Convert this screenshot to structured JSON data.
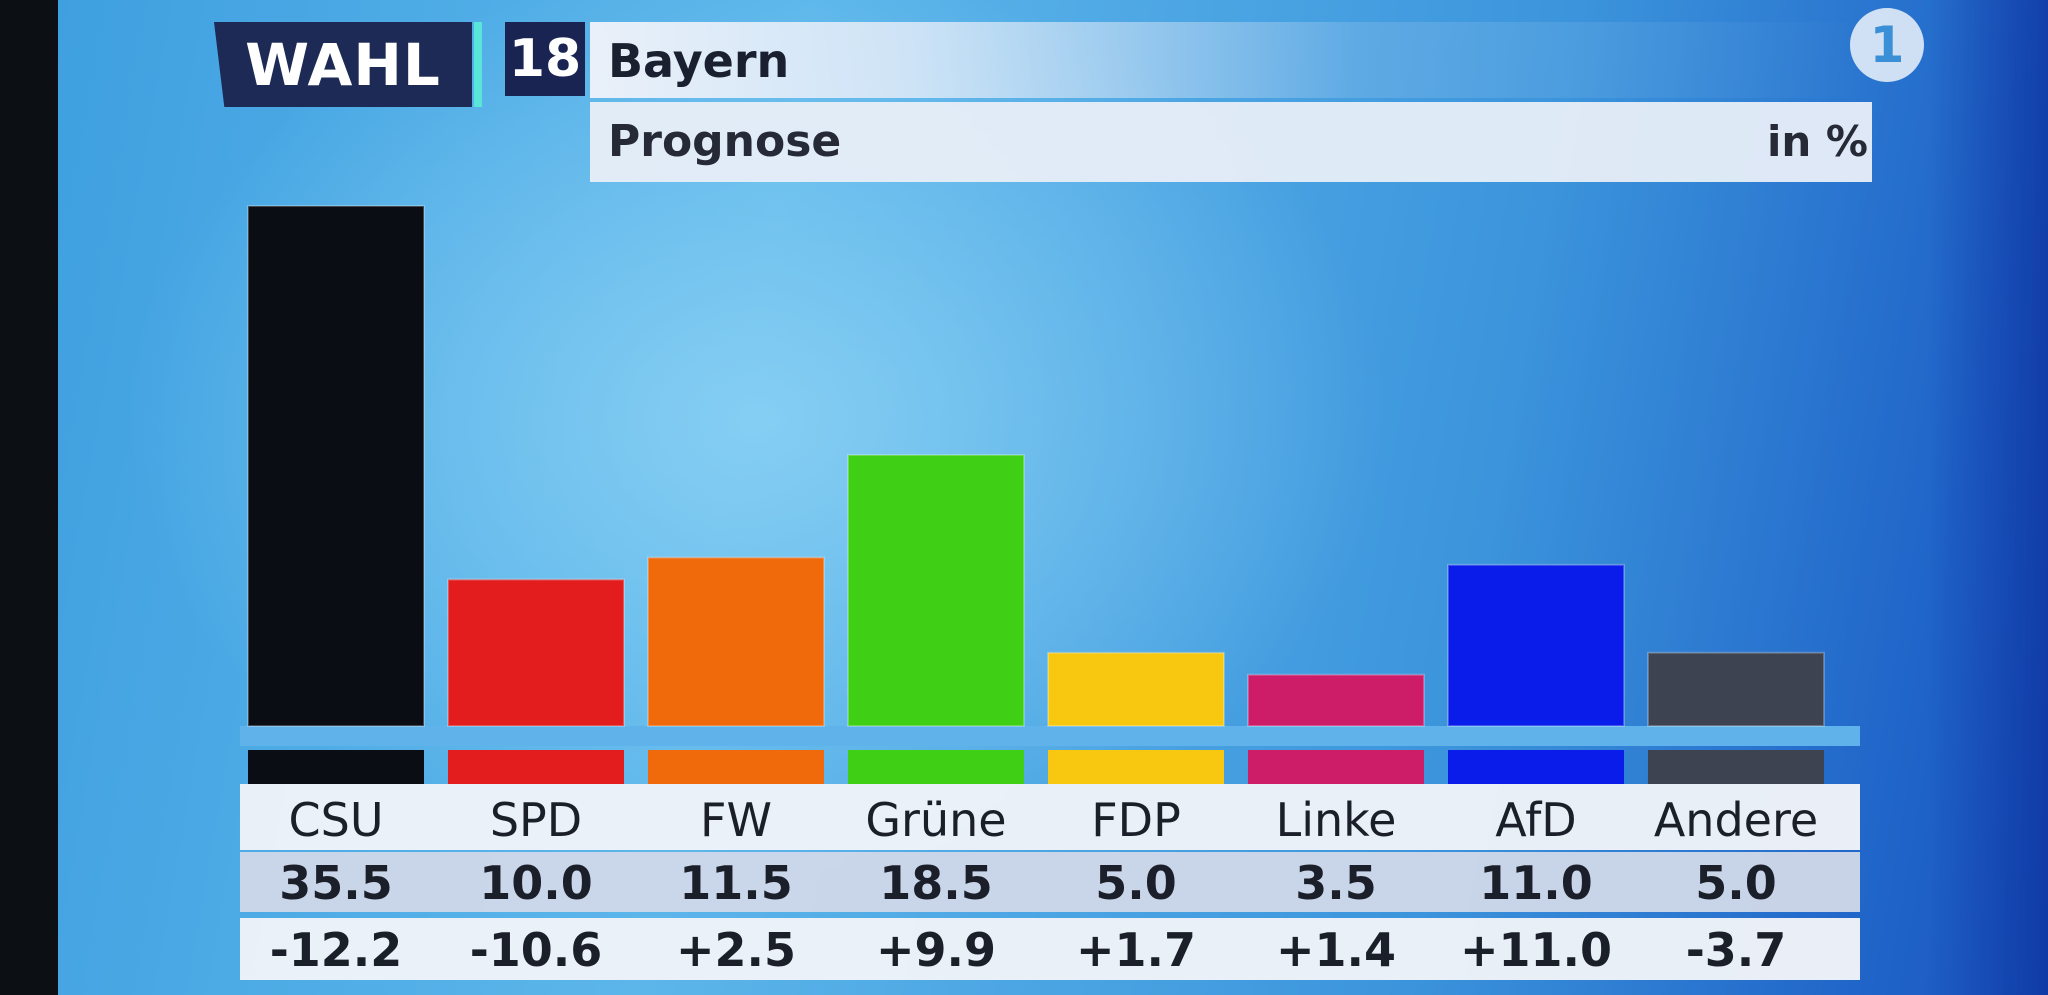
{
  "header": {
    "badge_text": "WAHL",
    "year": "18",
    "region": "Bayern",
    "subtitle": "Prognose",
    "unit": "in %",
    "channel_logo": "1"
  },
  "colors": {
    "CSU": "#0b0d14",
    "SPD": "#e31d1d",
    "FW": "#f06a0c",
    "Grüne": "#3fcf14",
    "FDP": "#f7c80f",
    "Linke": "#cd1d69",
    "AfD": "#0a1cea",
    "Andere": "#3d4350"
  },
  "chart_data": {
    "type": "bar",
    "categories": [
      "CSU",
      "SPD",
      "FW",
      "Grüne",
      "FDP",
      "Linke",
      "AfD",
      "Andere"
    ],
    "values": [
      35.5,
      10.0,
      11.5,
      18.5,
      5.0,
      3.5,
      11.0,
      5.0
    ],
    "changes": [
      -12.2,
      -10.6,
      2.5,
      9.9,
      1.7,
      1.4,
      11.0,
      -3.7
    ],
    "value_labels": [
      "35.5",
      "10.0",
      "11.5",
      "18.5",
      "5.0",
      "3.5",
      "11.0",
      "5.0"
    ],
    "change_labels": [
      "-12.2",
      "-10.6",
      "+2.5",
      "+9.9",
      "+1.7",
      "+1.4",
      "+11.0",
      "-3.7"
    ],
    "title": "Bayern",
    "subtitle": "Prognose",
    "ylabel": "in %",
    "ylim": [
      0,
      36
    ],
    "grid": false,
    "legend": "none"
  }
}
